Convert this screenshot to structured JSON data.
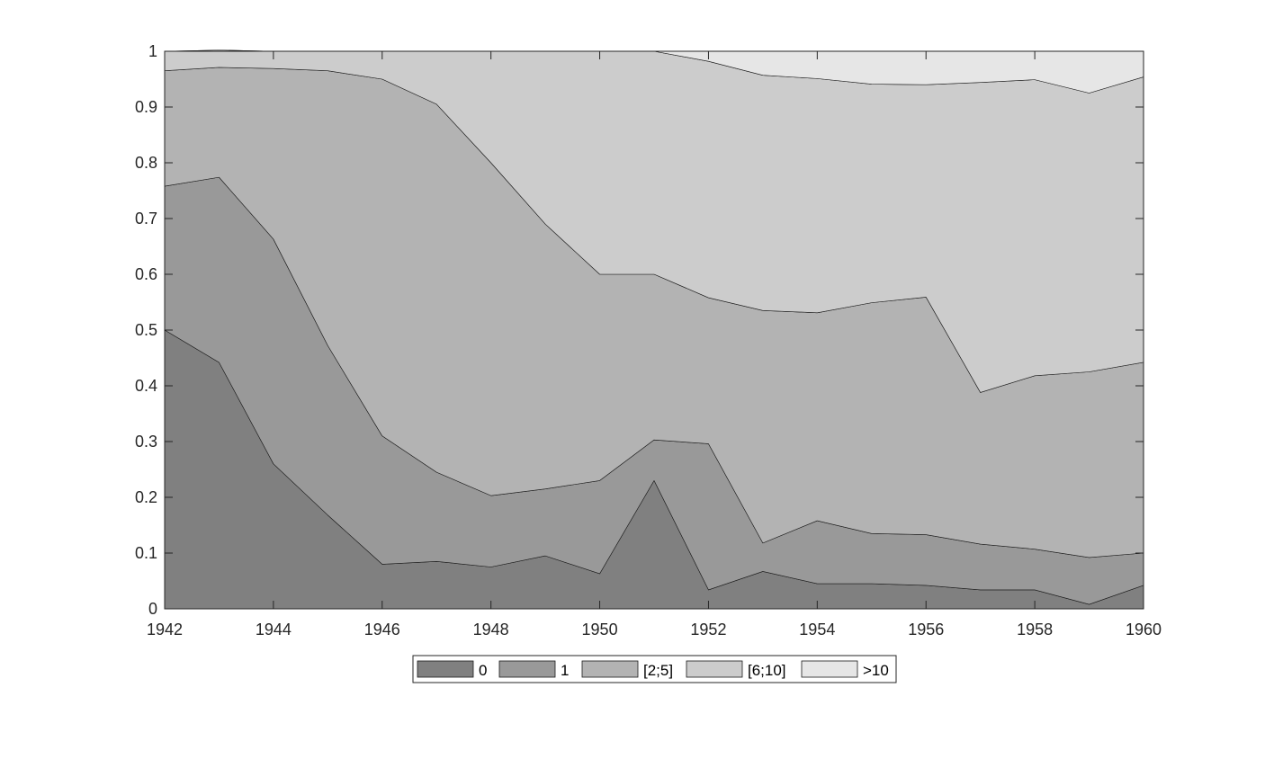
{
  "chart_data": {
    "type": "area",
    "stacked": true,
    "title": "",
    "xlabel": "",
    "ylabel": "",
    "xlim": [
      1942,
      1960
    ],
    "ylim": [
      0,
      1
    ],
    "grid": false,
    "legend_position": "bottom",
    "legend_orientation": "horizontal",
    "x": [
      1942,
      1943,
      1944,
      1945,
      1946,
      1947,
      1948,
      1949,
      1950,
      1951,
      1952,
      1953,
      1954,
      1955,
      1956,
      1957,
      1958,
      1959,
      1960
    ],
    "x_ticks": [
      1942,
      1944,
      1946,
      1948,
      1950,
      1952,
      1954,
      1956,
      1958,
      1960
    ],
    "x_tick_labels": [
      "1942",
      "1944",
      "1946",
      "1948",
      "1950",
      "1952",
      "1954",
      "1956",
      "1958",
      "1960"
    ],
    "y_ticks": [
      0,
      0.1,
      0.2,
      0.3,
      0.4,
      0.5,
      0.6,
      0.7,
      0.8,
      0.9,
      1
    ],
    "y_tick_labels": [
      "0",
      "0.1",
      "0.2",
      "0.3",
      "0.4",
      "0.5",
      "0.6",
      "0.7",
      "0.8",
      "0.9",
      "1"
    ],
    "series": [
      {
        "name": "0",
        "color": "#808080",
        "values": [
          0.5,
          0.442,
          0.26,
          0.168,
          0.08,
          0.085,
          0.075,
          0.095,
          0.063,
          0.23,
          0.034,
          0.067,
          0.045,
          0.045,
          0.042,
          0.034,
          0.034,
          0.008,
          0.042
        ]
      },
      {
        "name": "1",
        "color": "#999999",
        "values": [
          0.258,
          0.332,
          0.403,
          0.304,
          0.23,
          0.16,
          0.128,
          0.12,
          0.167,
          0.073,
          0.262,
          0.051,
          0.113,
          0.09,
          0.091,
          0.082,
          0.073,
          0.084,
          0.058
        ]
      },
      {
        "name": "[2;5]",
        "color": "#b3b3b3",
        "values": [
          0.207,
          0.197,
          0.306,
          0.493,
          0.64,
          0.66,
          0.597,
          0.475,
          0.37,
          0.297,
          0.262,
          0.417,
          0.373,
          0.414,
          0.426,
          0.272,
          0.311,
          0.333,
          0.342
        ]
      },
      {
        "name": "[6;10]",
        "color": "#cccccc",
        "values": [
          0.035,
          0.031,
          0.031,
          0.035,
          0.05,
          0.095,
          0.2,
          0.31,
          0.4,
          0.4,
          0.424,
          0.422,
          0.42,
          0.392,
          0.381,
          0.556,
          0.531,
          0.5,
          0.512
        ]
      },
      {
        "name": ">10",
        "color": "#e6e6e6",
        "values": [
          0.0,
          0.0,
          0.0,
          0.0,
          0.0,
          0.0,
          0.0,
          0.0,
          0.0,
          0.0,
          0.018,
          0.043,
          0.049,
          0.059,
          0.06,
          0.056,
          0.051,
          0.075,
          0.046
        ]
      }
    ]
  }
}
